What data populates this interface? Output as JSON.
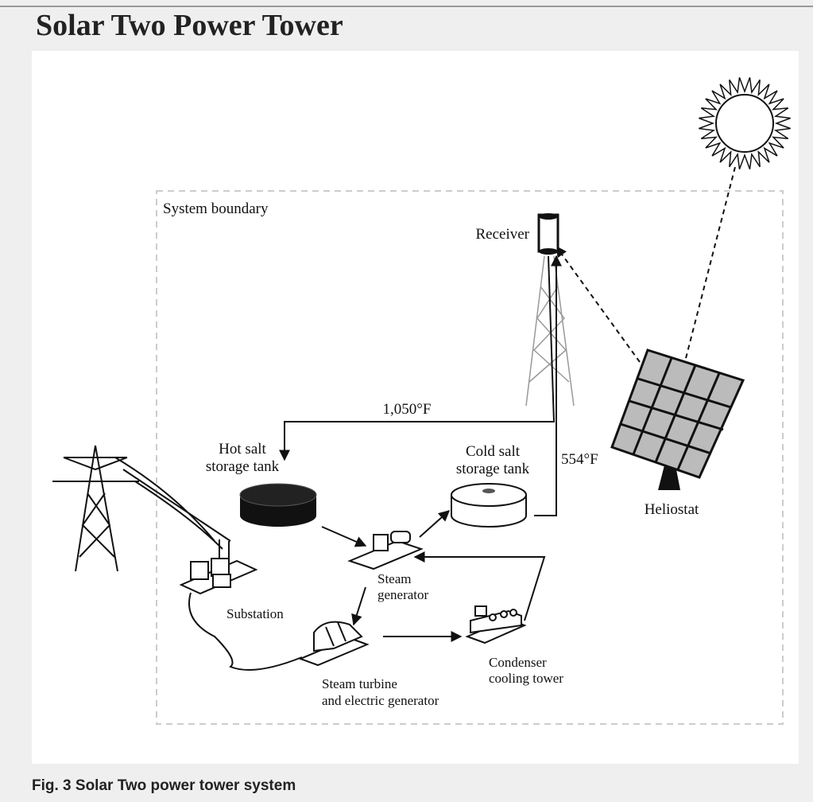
{
  "header": {
    "title": "Solar Two Power Tower"
  },
  "diagram": {
    "boundary_label": "System boundary",
    "nodes": [
      {
        "lines": [
          "Receiver"
        ]
      },
      {
        "lines": [
          "Heliostat"
        ]
      },
      {
        "lines": [
          "Hot salt",
          "storage tank"
        ]
      },
      {
        "lines": [
          "Cold salt",
          "storage tank"
        ]
      },
      {
        "lines": [
          "Steam",
          "generator"
        ]
      },
      {
        "lines": [
          "Substation"
        ]
      },
      {
        "lines": [
          "Steam turbine",
          "and electric generator"
        ]
      },
      {
        "lines": [
          "Condenser",
          "cooling tower"
        ]
      }
    ],
    "temperatures": [
      "1,050°F",
      "554°F"
    ]
  },
  "caption": "Fig. 3 Solar Two power tower system"
}
